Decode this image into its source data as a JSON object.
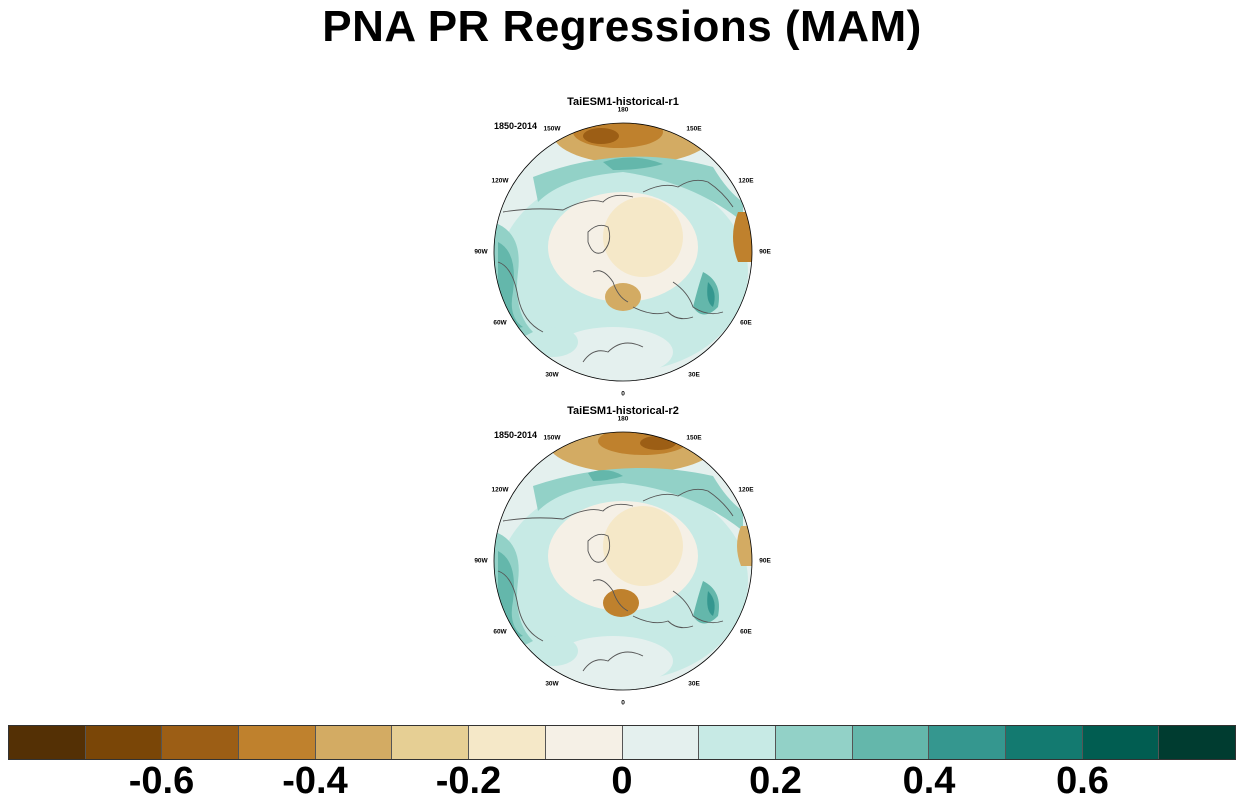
{
  "title": "PNA PR Regressions (MAM)",
  "panels": [
    {
      "title": "TaiESM1-historical-r1",
      "period": "1850-2014",
      "lon_labels": [
        "180",
        "150E",
        "120E",
        "90E",
        "60E",
        "30E",
        "0",
        "30W",
        "60W",
        "90W",
        "120W",
        "150W"
      ]
    },
    {
      "title": "TaiESM1-historical-r2",
      "period": "1850-2014",
      "lon_labels": [
        "180",
        "150E",
        "120E",
        "90E",
        "60E",
        "30E",
        "0",
        "30W",
        "60W",
        "90W",
        "120W",
        "150W"
      ]
    }
  ],
  "colorbar": {
    "colors": [
      "#543005",
      "#7a4607",
      "#9c5e15",
      "#bf812d",
      "#d3ab63",
      "#e6cf94",
      "#f5e8c8",
      "#f5f0e6",
      "#e4f0ee",
      "#c7eae5",
      "#92d1c7",
      "#64b7ab",
      "#35978f",
      "#137a70",
      "#015d51",
      "#003c30"
    ],
    "labels": [
      "-0.6",
      "-0.4",
      "-0.2",
      "0",
      "0.2",
      "0.4",
      "0.6"
    ],
    "label_boundaries": [
      2,
      4,
      6,
      8,
      10,
      12,
      14
    ]
  }
}
